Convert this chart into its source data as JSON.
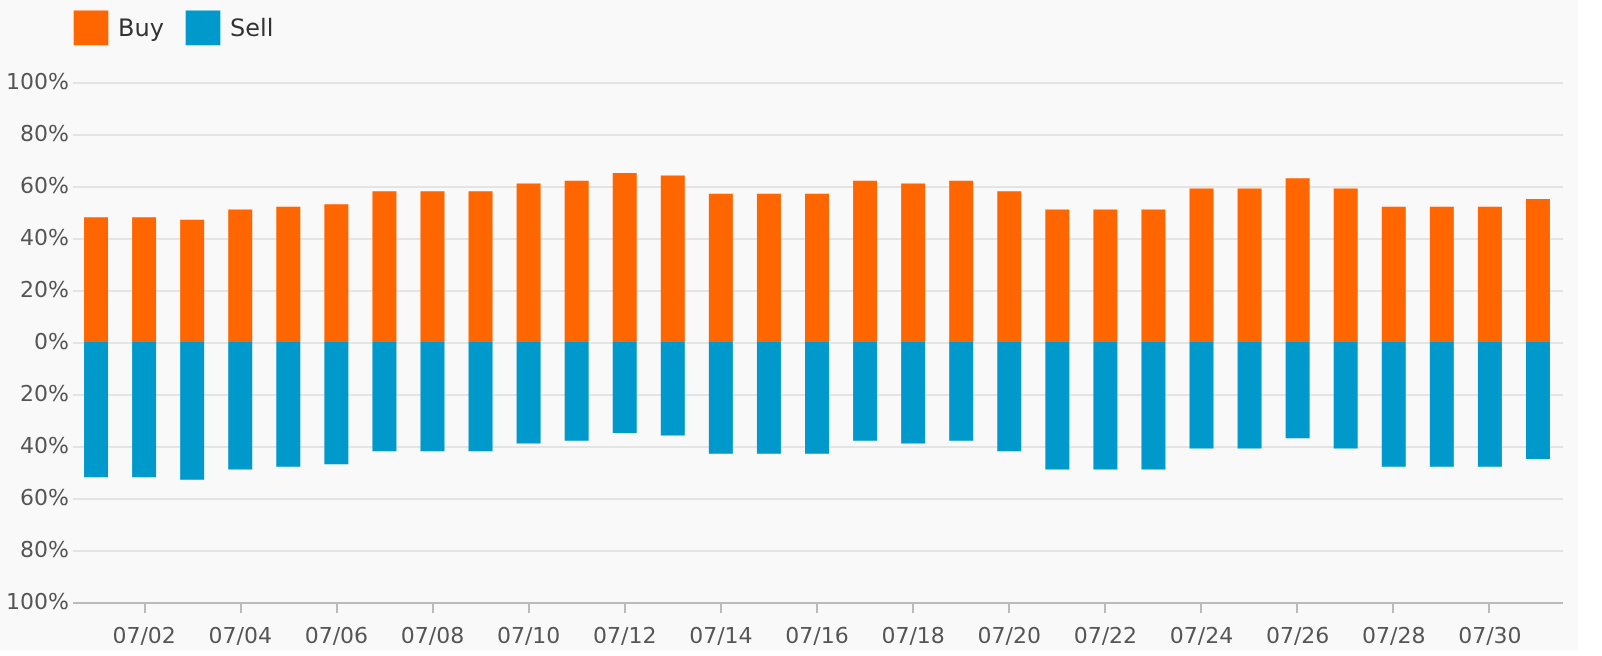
{
  "chart_data": {
    "type": "bar",
    "stacked": true,
    "categories": [
      null,
      "07/02",
      null,
      "07/04",
      null,
      "07/06",
      null,
      "07/08",
      null,
      "07/10",
      null,
      "07/12",
      null,
      "07/14",
      null,
      "07/16",
      null,
      "07/18",
      null,
      "07/20",
      null,
      "07/22",
      null,
      "07/24",
      null,
      "07/26",
      null,
      "07/28",
      null,
      "07/30",
      null
    ],
    "series": [
      {
        "name": "Buy",
        "color": "#ff6600",
        "values": [
          48,
          48,
          47,
          51,
          52,
          53,
          58,
          58,
          58,
          61,
          62,
          65,
          64,
          57,
          57,
          57,
          62,
          61,
          62,
          58,
          51,
          51,
          51,
          59,
          59,
          63,
          59,
          52,
          52,
          52,
          55
        ]
      },
      {
        "name": "Sell",
        "color": "#0099cc",
        "values": [
          -52,
          -52,
          -53,
          -49,
          -48,
          -47,
          -42,
          -42,
          -42,
          -39,
          -38,
          -35,
          -36,
          -43,
          -43,
          -43,
          -38,
          -39,
          -38,
          -42,
          -49,
          -49,
          -49,
          -41,
          -41,
          -37,
          -41,
          -48,
          -48,
          -48,
          -45
        ]
      }
    ],
    "ylim": [
      -100,
      100
    ],
    "yticks": [
      {
        "value": -100,
        "label": "100%"
      },
      {
        "value": -80,
        "label": "80%"
      },
      {
        "value": -60,
        "label": "60%"
      },
      {
        "value": -40,
        "label": "40%"
      },
      {
        "value": -20,
        "label": "20%"
      },
      {
        "value": 0,
        "label": "0%"
      },
      {
        "value": 20,
        "label": "20%"
      },
      {
        "value": 40,
        "label": "40%"
      },
      {
        "value": 60,
        "label": "60%"
      },
      {
        "value": 80,
        "label": "80%"
      },
      {
        "value": 100,
        "label": "100%"
      }
    ],
    "grid": "y",
    "legend": "top left"
  }
}
